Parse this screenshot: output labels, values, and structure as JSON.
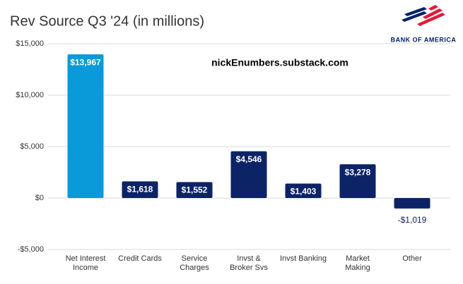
{
  "chart_data": {
    "type": "bar",
    "title": "Rev Source Q3 '24 (in millions)",
    "annotation": "nickEnumbers.substack.com",
    "logo_text": "BANK OF AMERICA",
    "categories": [
      "Net Interest\nIncome",
      "Credit Cards",
      "Service\nCharges",
      "Invst &\nBroker Svs",
      "Invst Banking",
      "Market\nMaking",
      "Other"
    ],
    "values": [
      13967,
      1618,
      1552,
      4546,
      1403,
      3278,
      -1019
    ],
    "value_labels": [
      "$13,967",
      "$1,618",
      "$1,552",
      "$4,546",
      "$1,403",
      "$3,278",
      "-$1,019"
    ],
    "colors": [
      "#0a9ad9",
      "#0c2366",
      "#0c2366",
      "#0c2366",
      "#0c2366",
      "#0c2366",
      "#0c2366"
    ],
    "ylim": [
      -5000,
      15000
    ],
    "yticks": [
      {
        "value": -5000,
        "label": "-$5,000"
      },
      {
        "value": 0,
        "label": "$0"
      },
      {
        "value": 5000,
        "label": "$5,000"
      },
      {
        "value": 10000,
        "label": "$10,000"
      },
      {
        "value": 15000,
        "label": "$15,000"
      }
    ],
    "grid": true
  }
}
